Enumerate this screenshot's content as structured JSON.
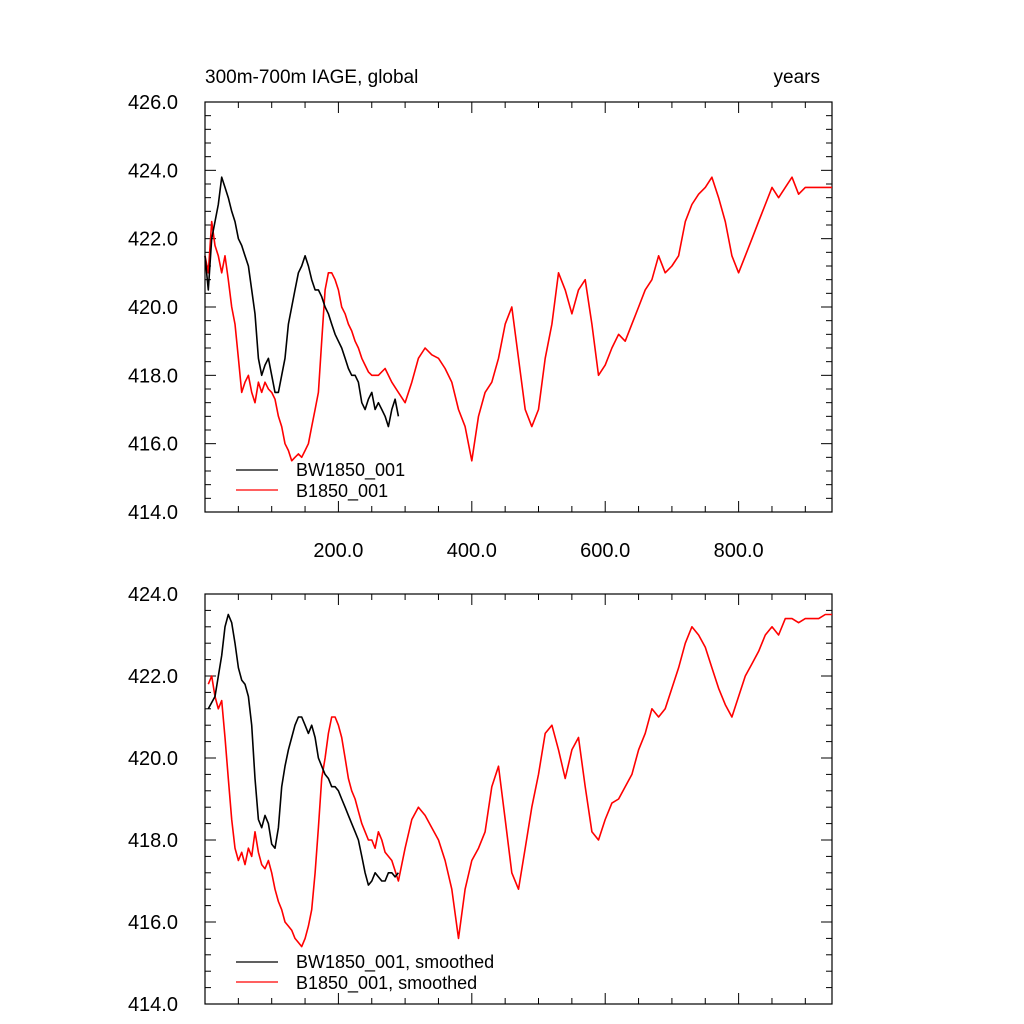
{
  "chart_data": [
    {
      "type": "line",
      "title_left": "300m-700m IAGE, global",
      "title_right": "years",
      "xlim": [
        0,
        940
      ],
      "ylim": [
        414,
        426
      ],
      "xticks": [
        200,
        400,
        600,
        800
      ],
      "xtick_labels": [
        "200.0",
        "400.0",
        "600.0",
        "800.0"
      ],
      "yticks": [
        414,
        416,
        418,
        420,
        422,
        424,
        426
      ],
      "ytick_labels": [
        "414.0",
        "416.0",
        "418.0",
        "420.0",
        "422.0",
        "424.0",
        "426.0"
      ],
      "legend_placement": "bottom-left",
      "series": [
        {
          "name": "BW1850_001",
          "color": "#000000",
          "x": [
            0,
            5,
            10,
            15,
            20,
            25,
            30,
            35,
            40,
            45,
            50,
            55,
            60,
            65,
            70,
            75,
            80,
            85,
            90,
            95,
            100,
            105,
            110,
            115,
            120,
            125,
            130,
            135,
            140,
            145,
            150,
            155,
            160,
            165,
            170,
            175,
            180,
            185,
            190,
            195,
            200,
            205,
            210,
            215,
            220,
            225,
            230,
            235,
            240,
            245,
            250,
            255,
            260,
            265,
            270,
            275,
            280,
            285,
            290
          ],
          "y": [
            421.5,
            420.5,
            422.0,
            422.5,
            423.0,
            423.8,
            423.5,
            423.2,
            422.8,
            422.5,
            422.0,
            421.8,
            421.5,
            421.2,
            420.5,
            419.8,
            418.5,
            418.0,
            418.3,
            418.5,
            418.0,
            417.5,
            417.5,
            418.0,
            418.5,
            419.5,
            420.0,
            420.5,
            421.0,
            421.2,
            421.5,
            421.2,
            420.8,
            420.5,
            420.5,
            420.3,
            420.0,
            419.8,
            419.5,
            419.2,
            419.0,
            418.8,
            418.5,
            418.2,
            418.0,
            418.0,
            417.8,
            417.2,
            417.0,
            417.3,
            417.5,
            417.0,
            417.2,
            417.0,
            416.8,
            416.5,
            417.0,
            417.3,
            416.8
          ]
        },
        {
          "name": "B1850_001",
          "color": "#ff0000",
          "x": [
            0,
            5,
            10,
            15,
            20,
            25,
            30,
            35,
            40,
            45,
            50,
            55,
            60,
            65,
            70,
            75,
            80,
            85,
            90,
            95,
            100,
            105,
            110,
            115,
            120,
            125,
            130,
            135,
            140,
            145,
            150,
            155,
            160,
            165,
            170,
            175,
            180,
            185,
            190,
            195,
            200,
            205,
            210,
            215,
            220,
            225,
            230,
            235,
            240,
            245,
            250,
            260,
            270,
            280,
            290,
            300,
            310,
            320,
            330,
            340,
            350,
            360,
            370,
            380,
            390,
            400,
            410,
            420,
            430,
            440,
            450,
            460,
            470,
            480,
            490,
            500,
            510,
            520,
            530,
            540,
            550,
            560,
            570,
            580,
            590,
            600,
            610,
            620,
            630,
            640,
            650,
            660,
            670,
            680,
            690,
            700,
            710,
            720,
            730,
            740,
            750,
            760,
            770,
            780,
            790,
            800,
            810,
            820,
            830,
            840,
            850,
            860,
            870,
            880,
            890,
            900,
            910,
            920,
            930,
            940
          ],
          "y": [
            421.5,
            421.0,
            422.5,
            421.8,
            421.5,
            421.0,
            421.5,
            420.8,
            420.0,
            419.5,
            418.5,
            417.5,
            417.8,
            418.0,
            417.5,
            417.2,
            417.8,
            417.5,
            417.8,
            417.6,
            417.5,
            417.3,
            416.8,
            416.5,
            416.0,
            415.8,
            415.5,
            415.6,
            415.7,
            415.6,
            415.8,
            416.0,
            416.5,
            417.0,
            417.5,
            419.0,
            420.5,
            421.0,
            421.0,
            420.8,
            420.5,
            420.0,
            419.8,
            419.5,
            419.3,
            419.0,
            418.8,
            418.5,
            418.3,
            418.1,
            418.0,
            418.0,
            418.2,
            417.8,
            417.5,
            417.2,
            417.8,
            418.5,
            418.8,
            418.6,
            418.5,
            418.2,
            417.8,
            417.0,
            416.5,
            415.5,
            416.8,
            417.5,
            417.8,
            418.5,
            419.5,
            420.0,
            418.5,
            417.0,
            416.5,
            417.0,
            418.5,
            419.5,
            421.0,
            420.5,
            419.8,
            420.5,
            420.8,
            419.5,
            418.0,
            418.3,
            418.8,
            419.2,
            419.0,
            419.5,
            420.0,
            420.5,
            420.8,
            421.5,
            421.0,
            421.2,
            421.5,
            422.5,
            423.0,
            423.3,
            423.5,
            423.8,
            423.2,
            422.5,
            421.5,
            421.0,
            421.5,
            422.0,
            422.5,
            423.0,
            423.5,
            423.2,
            423.5,
            423.8,
            423.3,
            423.5,
            423.5,
            423.5,
            423.5,
            423.5
          ]
        }
      ]
    },
    {
      "type": "line",
      "xlim": [
        0,
        940
      ],
      "ylim": [
        414,
        424
      ],
      "xticks": [
        200,
        400,
        600,
        800
      ],
      "yticks": [
        414,
        416,
        418,
        420,
        422,
        424
      ],
      "ytick_labels": [
        "414.0",
        "416.0",
        "418.0",
        "420.0",
        "422.0",
        "424.0"
      ],
      "legend_placement": "bottom-left",
      "series": [
        {
          "name": "BW1850_001, smoothed",
          "color": "#000000",
          "x": [
            5,
            15,
            25,
            30,
            35,
            40,
            45,
            50,
            55,
            60,
            65,
            70,
            75,
            80,
            85,
            90,
            95,
            100,
            105,
            110,
            115,
            120,
            125,
            130,
            135,
            140,
            145,
            150,
            155,
            160,
            165,
            170,
            175,
            180,
            185,
            190,
            195,
            200,
            205,
            210,
            215,
            220,
            225,
            230,
            235,
            240,
            245,
            250,
            255,
            260,
            265,
            270,
            275,
            280,
            285,
            290
          ],
          "y": [
            421.2,
            421.5,
            422.5,
            423.2,
            423.5,
            423.3,
            422.8,
            422.2,
            421.9,
            421.8,
            421.5,
            420.8,
            419.5,
            418.5,
            418.3,
            418.6,
            418.4,
            417.9,
            417.8,
            418.3,
            419.3,
            419.8,
            420.2,
            420.5,
            420.8,
            421.0,
            421.0,
            420.8,
            420.6,
            420.8,
            420.5,
            420.0,
            419.8,
            419.6,
            419.5,
            419.3,
            419.3,
            419.2,
            419.0,
            418.8,
            418.6,
            418.4,
            418.2,
            418.0,
            417.6,
            417.2,
            416.9,
            417.0,
            417.2,
            417.1,
            417.0,
            417.0,
            417.2,
            417.2,
            417.1,
            417.2
          ]
        },
        {
          "name": "B1850_001, smoothed",
          "color": "#ff0000",
          "x": [
            5,
            10,
            15,
            20,
            25,
            30,
            35,
            40,
            45,
            50,
            55,
            60,
            65,
            70,
            75,
            80,
            85,
            90,
            95,
            100,
            105,
            110,
            115,
            120,
            125,
            130,
            135,
            140,
            145,
            150,
            155,
            160,
            165,
            170,
            175,
            180,
            185,
            190,
            195,
            200,
            205,
            210,
            215,
            220,
            225,
            230,
            235,
            240,
            245,
            250,
            255,
            260,
            265,
            270,
            280,
            290,
            300,
            310,
            320,
            330,
            340,
            350,
            360,
            370,
            380,
            390,
            400,
            410,
            420,
            430,
            440,
            450,
            460,
            470,
            480,
            490,
            500,
            510,
            520,
            530,
            540,
            550,
            560,
            570,
            580,
            590,
            600,
            610,
            620,
            630,
            640,
            650,
            660,
            670,
            680,
            690,
            700,
            710,
            720,
            730,
            740,
            750,
            760,
            770,
            780,
            790,
            800,
            810,
            820,
            830,
            840,
            850,
            860,
            870,
            880,
            890,
            900,
            910,
            920,
            930,
            940
          ],
          "y": [
            421.8,
            422.0,
            421.5,
            421.2,
            421.4,
            420.5,
            419.5,
            418.5,
            417.8,
            417.5,
            417.7,
            417.4,
            417.8,
            417.6,
            418.2,
            417.7,
            417.4,
            417.3,
            417.5,
            417.2,
            416.8,
            416.5,
            416.3,
            416.0,
            415.9,
            415.8,
            415.6,
            415.5,
            415.4,
            415.6,
            415.9,
            416.3,
            417.2,
            418.3,
            419.5,
            420.0,
            420.6,
            421.0,
            421.0,
            420.8,
            420.5,
            420.0,
            419.5,
            419.2,
            419.0,
            418.7,
            418.4,
            418.2,
            418.0,
            418.0,
            417.8,
            418.2,
            418.0,
            417.7,
            417.5,
            417.0,
            417.8,
            418.5,
            418.8,
            418.6,
            418.3,
            418.0,
            417.5,
            416.8,
            415.6,
            416.8,
            417.5,
            417.8,
            418.2,
            419.3,
            419.8,
            418.5,
            417.2,
            416.8,
            417.8,
            418.8,
            419.6,
            420.6,
            420.8,
            420.2,
            419.5,
            420.2,
            420.5,
            419.3,
            418.2,
            418.0,
            418.5,
            418.9,
            419.0,
            419.3,
            419.6,
            420.2,
            420.6,
            421.2,
            421.0,
            421.2,
            421.7,
            422.2,
            422.8,
            423.2,
            423.0,
            422.7,
            422.2,
            421.7,
            421.3,
            421.0,
            421.5,
            422.0,
            422.3,
            422.6,
            423.0,
            423.2,
            423.0,
            423.4,
            423.4,
            423.3,
            423.4,
            423.4,
            423.4,
            423.5,
            423.5
          ]
        }
      ]
    }
  ]
}
